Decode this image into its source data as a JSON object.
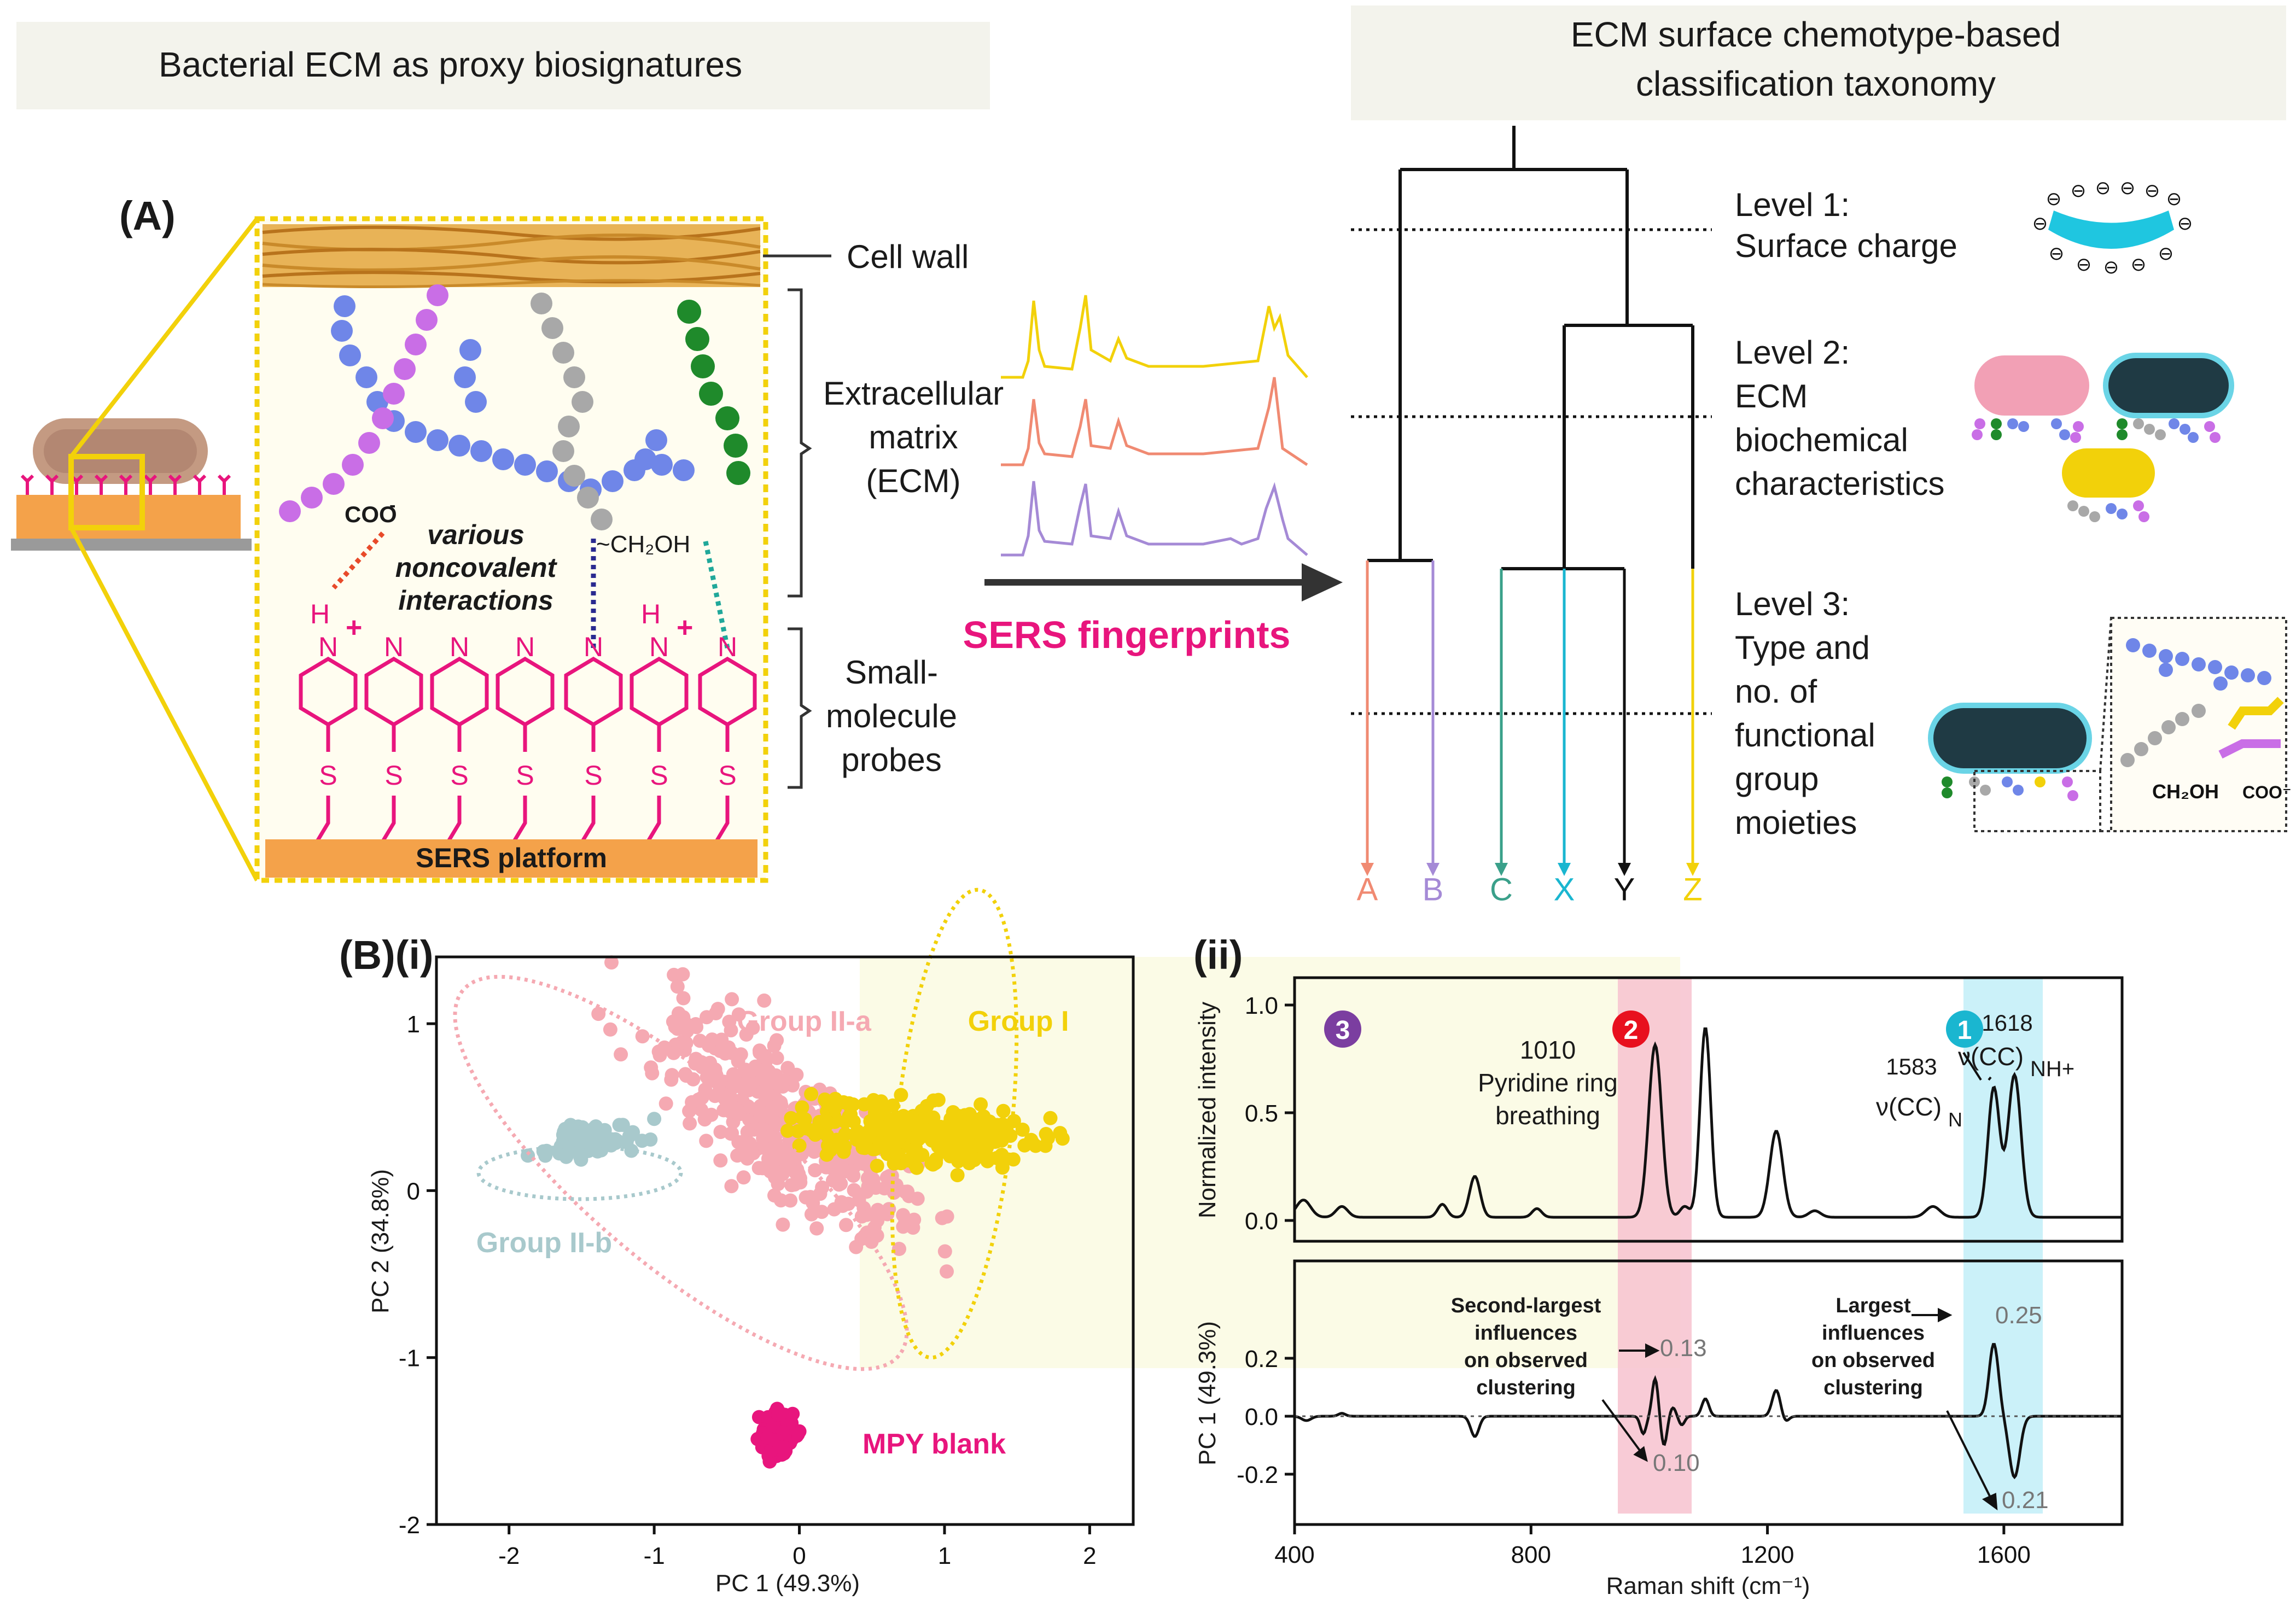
{
  "header_left": "Bacterial ECM as proxy biosignatures",
  "header_right_1": "ECM surface chemotype-based",
  "header_right_2": "classification taxonomy",
  "panel_a": {
    "label": "(A)",
    "cell_wall": "Cell wall",
    "ecm_1": "Extracellular",
    "ecm_2": "matrix",
    "ecm_3": "(ECM)",
    "small_1": "Small-",
    "small_2": "molecule",
    "small_3": "probes",
    "coo": "COO",
    "ch2oh": "~CH₂OH",
    "various_1": "various",
    "various_2": "noncovalent",
    "various_3": "interactions",
    "pyridine_n": "N",
    "pyridine_hplus": "H",
    "plus": "+",
    "minus": "-",
    "sulfur": "S",
    "sers_platform": "SERS platform",
    "sers_fingerprints": "SERS fingerprints"
  },
  "taxonomy": {
    "level1_a": "Level 1:",
    "level1_b": "Surface charge",
    "level2_a": "Level 2:",
    "level2_b": "ECM",
    "level2_c": "biochemical",
    "level2_d": "characteristics",
    "level3_a": "Level 3:",
    "level3_b": "Type and",
    "level3_c": "no. of",
    "level3_d": "functional",
    "level3_e": "group",
    "level3_f": "moieties",
    "leaf_a": "A",
    "leaf_b": "B",
    "leaf_c": "C",
    "leaf_x": "X",
    "leaf_y": "Y",
    "leaf_z": "Z",
    "ch2oh": "CH₂OH",
    "coo": "COO⁻",
    "charge_symbol": "⊖"
  },
  "panel_b": {
    "label": "(B)(i)",
    "xlabel": "PC 1 (49.3%)",
    "ylabel": "PC 2 (34.8%)",
    "group_i": "Group I",
    "group_iia": "Group II-a",
    "group_iib": "Group II-b",
    "mpy_blank": "MPY blank",
    "xticks": [
      "-2",
      "-1",
      "0",
      "1",
      "2"
    ],
    "yticks": [
      "-2",
      "-1",
      "0",
      "1"
    ]
  },
  "panel_c": {
    "label": "(ii)",
    "ylabel_top": "Normalized intensity",
    "ylabel_bottom": "PC 1 (49.3%)",
    "xlabel": "Raman shift (cm⁻¹)",
    "xticks": [
      "400",
      "800",
      "1200",
      "1600"
    ],
    "yticks_top": [
      "1.0",
      "0.5",
      "0.0"
    ],
    "yticks_bottom": [
      "0.2",
      "0.0",
      "-0.2"
    ],
    "badge1": "1",
    "badge2": "2",
    "badge3": "3",
    "peak1010": "1010",
    "pyridine_ring": "Pyridine ring",
    "breathing": "breathing",
    "peak1583": "1583",
    "nu_cc": "ν(CC)",
    "sub_n": "N",
    "peak1618": "1618",
    "sub_nh": "NH+",
    "val013": "0.13",
    "val010": "0.10",
    "val025": "0.25",
    "val021": "0.21",
    "second_1": "Second-largest",
    "second_2": "influences",
    "second_3": "on observed",
    "second_4": "clustering",
    "largest_1": "Largest",
    "largest_2": "influences",
    "largest_3": "on observed",
    "largest_4": "clustering"
  },
  "colors": {
    "pink": "#e8157d",
    "yellow": "#f2d10a",
    "salmon": "#f08a72",
    "lavender": "#a58ad6",
    "teal": "#3aa08a",
    "cyan": "#1ab6d0",
    "groupIIa": "#f5a9b2",
    "groupIIb": "#a8c9cc",
    "blue": "#6f86e8",
    "purple": "#c96ee6",
    "green": "#1f8a2b",
    "gray": "#a8a8a8"
  }
}
